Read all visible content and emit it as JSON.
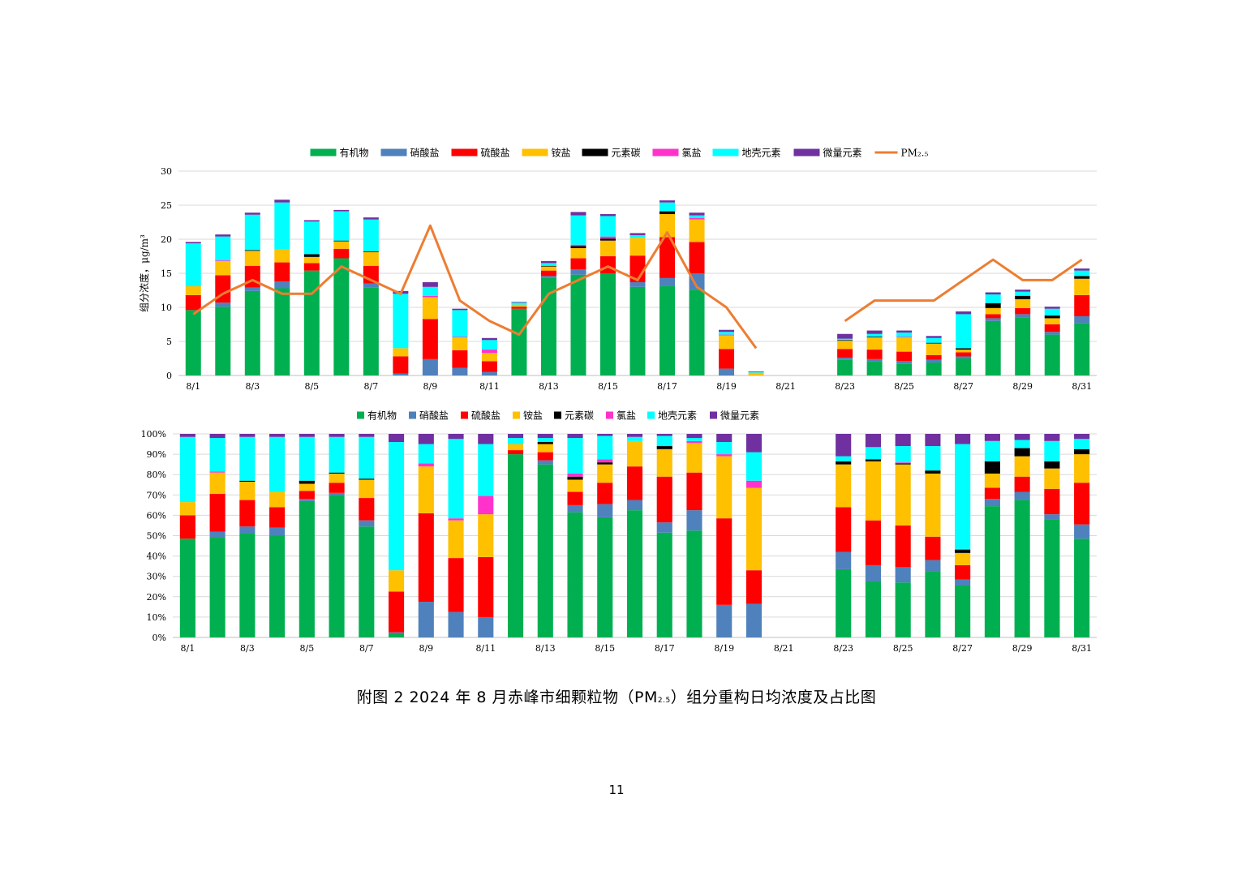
{
  "caption": {
    "prefix": "附图 2  2024 年 8 月赤峰市细颗粒物（PM",
    "sub": "2.5",
    "suffix": "）组分重构日均浓度及占比图"
  },
  "page_number": "11",
  "colors": {
    "有机物": "#00b050",
    "硝酸盐": "#4f81bd",
    "硫酸盐": "#ff0000",
    "铵盐": "#ffc000",
    "元素碳": "#000000",
    "氯盐": "#ff33cc",
    "地壳元素": "#00ffff",
    "微量元素": "#7030a0",
    "PM2.5": "#ed7d31",
    "grid": "#d9d9d9"
  },
  "chart_data": [
    {
      "type": "bar",
      "stacked": true,
      "ylabel": "组分浓度，μg/m³",
      "ylim": [
        0,
        30
      ],
      "yticks": [
        "0",
        "5",
        "10",
        "15",
        "20",
        "25",
        "30"
      ],
      "categories": [
        "8/1",
        "8/2",
        "8/3",
        "8/4",
        "8/5",
        "8/6",
        "8/7",
        "8/8",
        "8/9",
        "8/10",
        "8/11",
        "8/12",
        "8/13",
        "8/14",
        "8/15",
        "8/16",
        "8/17",
        "8/18",
        "8/19",
        "8/20",
        "8/21",
        "8/22",
        "8/23",
        "8/24",
        "8/25",
        "8/26",
        "8/27",
        "8/28",
        "8/29",
        "8/30",
        "8/31"
      ],
      "xtick_labels": [
        "8/1",
        "",
        "8/3",
        "",
        "8/5",
        "",
        "8/7",
        "",
        "8/9",
        "",
        "8/11",
        "",
        "8/13",
        "",
        "8/15",
        "",
        "8/17",
        "",
        "8/19",
        "",
        "8/21",
        "",
        "8/23",
        "",
        "8/25",
        "",
        "8/27",
        "",
        "8/29",
        "",
        "8/31"
      ],
      "legend_position": "top",
      "legend": [
        "有机物",
        "硝酸盐",
        "硫酸盐",
        "铵盐",
        "元素碳",
        "氯盐",
        "地壳元素",
        "微量元素",
        "PM₂.₅"
      ],
      "series": [
        {
          "name": "有机物",
          "values": [
            9.6,
            10.1,
            12.4,
            12.8,
            15.4,
            17.2,
            12.9,
            0.0,
            0.0,
            0.0,
            0.0,
            9.8,
            14.3,
            14.8,
            15.0,
            13.0,
            13.1,
            12.6,
            0.0,
            0.0,
            0,
            0,
            2.3,
            2.1,
            1.7,
            1.9,
            2.5,
            8.0,
            8.5,
            6.0,
            7.7
          ]
        },
        {
          "name": "硝酸盐",
          "values": [
            0.0,
            0.6,
            0.5,
            1.0,
            0.0,
            0.0,
            0.6,
            0.3,
            2.4,
            1.1,
            0.5,
            0.0,
            0.3,
            0.8,
            0.0,
            0.7,
            1.2,
            2.4,
            1.0,
            0.0,
            0,
            0,
            0.3,
            0.3,
            0.4,
            0.4,
            0.3,
            0.4,
            0.5,
            0.4,
            1.0
          ]
        },
        {
          "name": "硫酸盐",
          "values": [
            2.2,
            4.0,
            3.2,
            2.8,
            1.1,
            1.4,
            2.6,
            2.5,
            5.9,
            2.6,
            1.6,
            0.3,
            0.8,
            1.6,
            2.5,
            3.9,
            6.0,
            4.6,
            2.9,
            0.0,
            0,
            0,
            1.3,
            1.4,
            1.4,
            0.7,
            0.6,
            0.6,
            0.9,
            1.1,
            3.1
          ]
        },
        {
          "name": "铵盐",
          "values": [
            1.3,
            2.1,
            2.2,
            1.9,
            0.9,
            1.1,
            2.0,
            1.2,
            3.2,
            1.9,
            1.2,
            0.3,
            0.6,
            1.5,
            2.3,
            2.6,
            3.4,
            3.3,
            2.0,
            0.4,
            0,
            0,
            1.2,
            1.8,
            2.1,
            1.7,
            0.4,
            0.9,
            1.3,
            0.9,
            2.4
          ]
        },
        {
          "name": "元素碳",
          "values": [
            0.0,
            0.0,
            0.1,
            0.0,
            0.4,
            0.1,
            0.1,
            0.0,
            0.0,
            0.0,
            0.0,
            0.0,
            0.1,
            0.3,
            0.3,
            0.0,
            0.4,
            0.0,
            0.0,
            0.0,
            0,
            0,
            0.1,
            0.1,
            0.0,
            0.1,
            0.2,
            0.7,
            0.5,
            0.4,
            0.4
          ]
        },
        {
          "name": "氯盐",
          "values": [
            0.0,
            0.1,
            0.0,
            0.0,
            0.0,
            0.0,
            0.0,
            0.0,
            0.2,
            0.1,
            0.5,
            0.0,
            0.0,
            0.2,
            0.3,
            0.0,
            0.0,
            0.2,
            0.1,
            0.0,
            0,
            0,
            0.0,
            0.0,
            0.1,
            0.0,
            0.0,
            0.0,
            0.0,
            0.0,
            0.0
          ]
        },
        {
          "name": "地壳元素",
          "values": [
            6.3,
            3.5,
            5.2,
            6.9,
            4.8,
            4.3,
            4.7,
            8.0,
            1.3,
            3.9,
            1.4,
            0.3,
            0.4,
            4.3,
            3.0,
            0.4,
            1.3,
            0.4,
            0.4,
            0.1,
            0,
            0,
            0.2,
            0.4,
            0.6,
            0.7,
            5.0,
            1.3,
            0.6,
            1.0,
            0.8
          ]
        },
        {
          "name": "微量元素",
          "values": [
            0.2,
            0.3,
            0.3,
            0.4,
            0.2,
            0.2,
            0.3,
            0.4,
            0.7,
            0.2,
            0.3,
            0.1,
            0.3,
            0.5,
            0.3,
            0.3,
            0.3,
            0.4,
            0.3,
            0.1,
            0,
            0,
            0.7,
            0.5,
            0.3,
            0.3,
            0.4,
            0.3,
            0.3,
            0.3,
            0.3
          ]
        }
      ],
      "line": {
        "name": "PM₂.₅",
        "values": [
          9,
          12,
          14,
          12,
          12,
          16,
          14,
          12,
          22,
          11,
          8,
          6,
          12,
          14,
          16,
          14,
          21,
          13,
          10,
          4,
          null,
          null,
          8,
          11,
          11,
          11,
          14,
          17,
          14,
          14,
          17
        ]
      }
    },
    {
      "type": "bar",
      "stacked": true,
      "percent": true,
      "ylim": [
        0,
        100
      ],
      "yticks": [
        "0%",
        "10%",
        "20%",
        "30%",
        "40%",
        "50%",
        "60%",
        "70%",
        "80%",
        "90%",
        "100%"
      ],
      "categories": [
        "8/1",
        "8/2",
        "8/3",
        "8/4",
        "8/5",
        "8/6",
        "8/7",
        "8/8",
        "8/9",
        "8/10",
        "8/11",
        "8/12",
        "8/13",
        "8/14",
        "8/15",
        "8/16",
        "8/17",
        "8/18",
        "8/19",
        "8/20",
        "8/21",
        "8/22",
        "8/23",
        "8/24",
        "8/25",
        "8/26",
        "8/27",
        "8/28",
        "8/29",
        "8/30",
        "8/31"
      ],
      "xtick_labels": [
        "8/1",
        "",
        "8/3",
        "",
        "8/5",
        "",
        "8/7",
        "",
        "8/9",
        "",
        "8/11",
        "",
        "8/13",
        "",
        "8/15",
        "",
        "8/17",
        "",
        "8/19",
        "",
        "8/21",
        "",
        "8/23",
        "",
        "8/25",
        "",
        "8/27",
        "",
        "8/29",
        "",
        "8/31"
      ],
      "legend_position": "top",
      "legend": [
        "有机物",
        "硝酸盐",
        "硫酸盐",
        "铵盐",
        "元素碳",
        "氯盐",
        "地壳元素",
        "微量元素"
      ],
      "series": [
        {
          "name": "有机物",
          "values": [
            48.5,
            49.0,
            51.0,
            50.0,
            67.0,
            70.0,
            54.5,
            2.0,
            0.0,
            0.0,
            0.0,
            90.0,
            85.0,
            61.5,
            59.0,
            62.5,
            51.5,
            52.5,
            0.0,
            0.0,
            0,
            0,
            33.5,
            27.5,
            27.0,
            32.5,
            25.5,
            64.5,
            67.5,
            58.0,
            48.5
          ]
        },
        {
          "name": "硝酸盐",
          "values": [
            0.0,
            3.0,
            3.5,
            4.0,
            1.0,
            1.0,
            3.0,
            0.5,
            17.5,
            12.5,
            10.0,
            0.0,
            2.0,
            3.5,
            6.5,
            5.0,
            5.0,
            10.0,
            16.0,
            16.5,
            0,
            0,
            8.5,
            8.0,
            7.5,
            5.5,
            3.0,
            3.5,
            4.0,
            2.5,
            7.0
          ]
        },
        {
          "name": "硫酸盐",
          "values": [
            11.5,
            18.5,
            13.0,
            10.0,
            4.0,
            5.0,
            11.0,
            20.0,
            43.5,
            26.5,
            29.5,
            2.0,
            4.0,
            6.5,
            10.5,
            16.5,
            22.5,
            18.5,
            42.5,
            16.5,
            0,
            0,
            22.0,
            22.0,
            20.5,
            11.5,
            7.0,
            5.5,
            7.5,
            12.5,
            20.5
          ]
        },
        {
          "name": "铵盐",
          "values": [
            6.5,
            10.5,
            9.0,
            7.5,
            3.5,
            4.5,
            9.0,
            10.5,
            23.0,
            18.5,
            21.0,
            3.0,
            4.0,
            6.0,
            9.0,
            12.5,
            13.5,
            14.5,
            30.5,
            40.5,
            0,
            0,
            21.0,
            29.0,
            30.0,
            31.0,
            6.0,
            7.0,
            10.0,
            10.0,
            14.0
          ]
        },
        {
          "name": "元素碳",
          "values": [
            0.0,
            0.0,
            0.5,
            0.0,
            1.5,
            0.5,
            0.5,
            0.0,
            0.0,
            0.0,
            0.0,
            0.0,
            1.0,
            1.5,
            1.0,
            0.0,
            1.5,
            0.0,
            0.0,
            0.0,
            0,
            0,
            1.5,
            1.0,
            0.5,
            1.5,
            1.5,
            6.0,
            4.0,
            3.5,
            2.5
          ]
        },
        {
          "name": "氯盐",
          "values": [
            0.0,
            0.5,
            0.0,
            0.0,
            0.0,
            0.0,
            0.0,
            0.0,
            1.5,
            1.0,
            9.0,
            0.0,
            0.0,
            1.5,
            1.5,
            0.0,
            0.0,
            1.0,
            1.0,
            3.5,
            0,
            0,
            0.0,
            0.0,
            0.5,
            0.0,
            0.5,
            0.0,
            0.0,
            0.0,
            0.0
          ]
        },
        {
          "name": "地壳元素",
          "values": [
            32.0,
            16.5,
            21.5,
            27.0,
            21.5,
            17.5,
            20.5,
            63.0,
            9.5,
            39.0,
            25.5,
            3.0,
            2.0,
            17.5,
            11.5,
            2.0,
            5.0,
            1.5,
            6.0,
            14.0,
            0,
            0,
            2.5,
            6.0,
            8.0,
            12.0,
            51.5,
            10.0,
            4.0,
            10.0,
            5.0
          ]
        },
        {
          "name": "微量元素",
          "values": [
            1.5,
            2.0,
            1.5,
            1.5,
            1.5,
            1.5,
            1.5,
            4.0,
            5.0,
            2.5,
            5.0,
            2.0,
            2.0,
            2.0,
            1.0,
            1.5,
            1.0,
            2.0,
            4.0,
            9.0,
            0,
            0,
            11.0,
            6.5,
            6.0,
            6.0,
            5.0,
            3.5,
            3.0,
            3.5,
            2.5
          ]
        }
      ]
    }
  ]
}
